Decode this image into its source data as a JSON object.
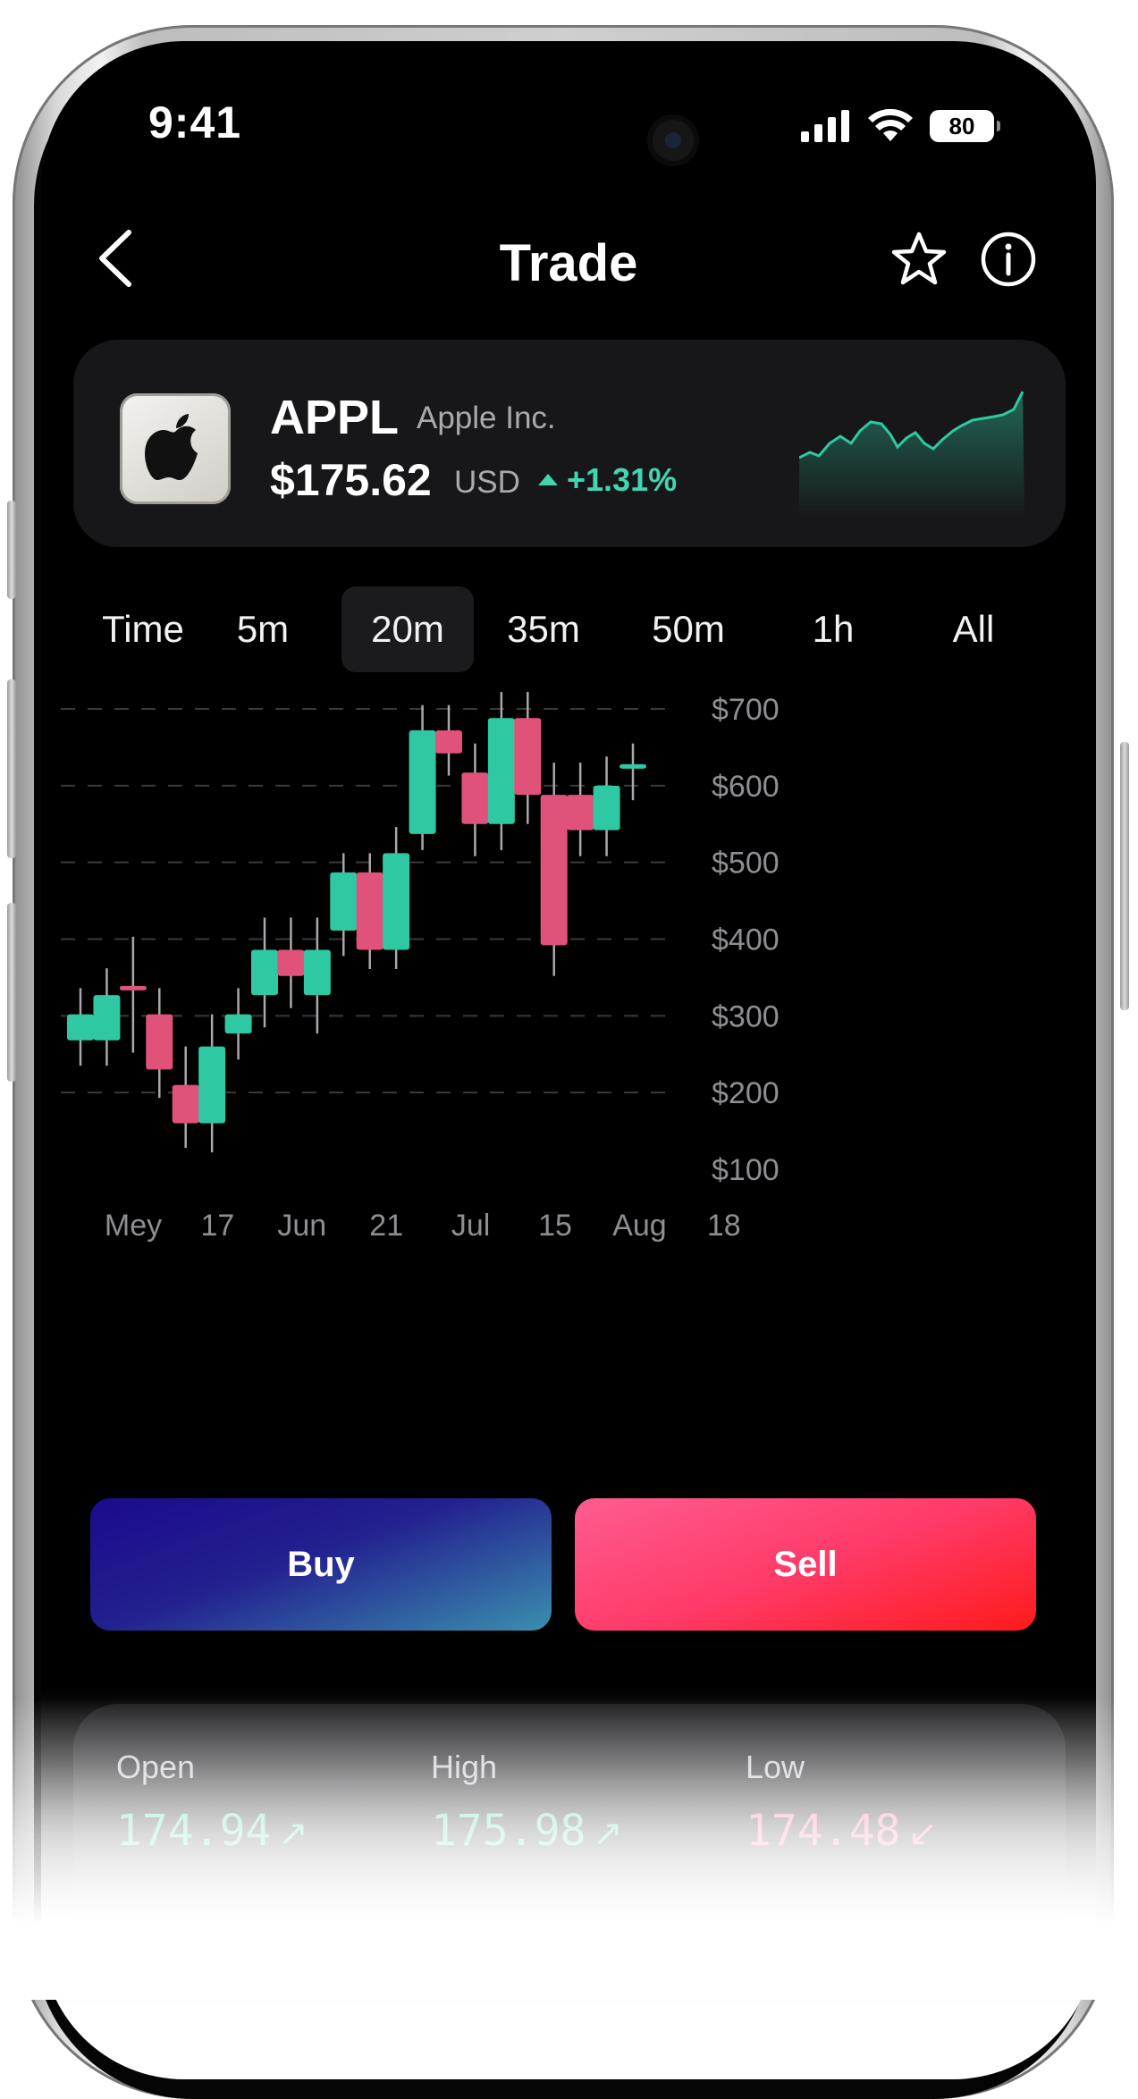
{
  "status_bar": {
    "time": "9:41",
    "battery": "80",
    "icons": [
      "signal-icon",
      "wifi-icon",
      "battery-icon"
    ]
  },
  "header": {
    "title": "Trade",
    "icons": [
      "chevron-left-icon",
      "star-icon",
      "info-icon"
    ]
  },
  "stock": {
    "ticker": "APPL",
    "company": "Apple Inc.",
    "price": "$175.62",
    "currency": "USD",
    "change": "+1.31%",
    "logo_icon": "apple-logo-icon",
    "accent_color": "#3fd6b0"
  },
  "timeframes": {
    "label": "Time",
    "options": [
      "5m",
      "20m",
      "35m",
      "50m",
      "1h",
      "All"
    ],
    "selected": "20m"
  },
  "chart_data": {
    "type": "candlestick",
    "y_ticks": [
      "$700",
      "$600",
      "$500",
      "$400",
      "$300",
      "$200",
      "$100"
    ],
    "x_ticks": [
      "Mey",
      "17",
      "Jun",
      "21",
      "Jul",
      "15",
      "Aug",
      "18"
    ],
    "ylim": [
      100,
      700
    ],
    "grid": "dashed horizontal",
    "up_color": "#2ec9a2",
    "down_color": "#e0527a",
    "candles": [
      {
        "open": 268,
        "close": 302,
        "high": 336,
        "low": 235
      },
      {
        "open": 268,
        "close": 327,
        "high": 362,
        "low": 235
      },
      {
        "open": 336,
        "close": 336,
        "high": 403,
        "low": 252
      },
      {
        "open": 302,
        "close": 230,
        "high": 336,
        "low": 193
      },
      {
        "open": 210,
        "close": 160,
        "high": 260,
        "low": 128
      },
      {
        "open": 160,
        "close": 260,
        "high": 302,
        "low": 122
      },
      {
        "open": 277,
        "close": 302,
        "high": 336,
        "low": 243
      },
      {
        "open": 327,
        "close": 386,
        "high": 428,
        "low": 285
      },
      {
        "open": 386,
        "close": 352,
        "high": 428,
        "low": 310
      },
      {
        "open": 327,
        "close": 386,
        "high": 428,
        "low": 277
      },
      {
        "open": 411,
        "close": 487,
        "high": 512,
        "low": 378
      },
      {
        "open": 487,
        "close": 386,
        "high": 512,
        "low": 361
      },
      {
        "open": 386,
        "close": 512,
        "high": 546,
        "low": 361
      },
      {
        "open": 537,
        "close": 672,
        "high": 705,
        "low": 516
      },
      {
        "open": 672,
        "close": 642,
        "high": 705,
        "low": 613
      },
      {
        "open": 617,
        "close": 550,
        "high": 655,
        "low": 508
      },
      {
        "open": 550,
        "close": 688,
        "high": 722,
        "low": 516
      },
      {
        "open": 688,
        "close": 588,
        "high": 722,
        "low": 550
      },
      {
        "open": 588,
        "close": 392,
        "high": 630,
        "low": 352
      },
      {
        "open": 588,
        "close": 542,
        "high": 630,
        "low": 508
      },
      {
        "open": 542,
        "close": 600,
        "high": 638,
        "low": 508
      },
      {
        "open": 625,
        "close": 625,
        "high": 655,
        "low": 581
      }
    ]
  },
  "actions": {
    "buy": "Buy",
    "sell": "Sell"
  },
  "stats": [
    {
      "label": "Open",
      "value": "174.94",
      "direction": "up"
    },
    {
      "label": "High",
      "value": "175.98",
      "direction": "up"
    },
    {
      "label": "Low",
      "value": "174.48",
      "direction": "down"
    }
  ]
}
